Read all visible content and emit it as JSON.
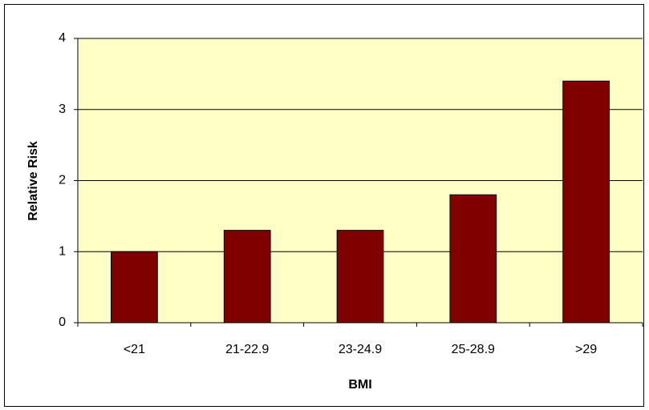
{
  "chart_data": {
    "type": "bar",
    "categories": [
      "<21",
      "21-22.9",
      "23-24.9",
      "25-28.9",
      ">29"
    ],
    "values": [
      1,
      1.3,
      1.3,
      1.8,
      3.4
    ],
    "color": "#800000",
    "xlabel": "BMI",
    "ylabel": "Relative Risk",
    "ylim": [
      0,
      4
    ],
    "yticks": [
      0,
      1,
      2,
      3,
      4
    ],
    "grid": true
  }
}
